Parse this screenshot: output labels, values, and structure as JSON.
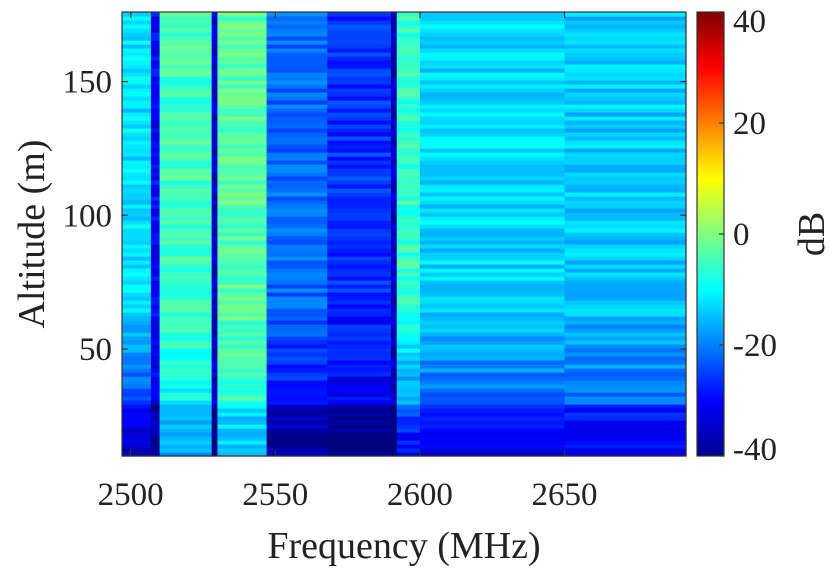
{
  "chart_data": {
    "type": "heatmap",
    "title": "",
    "xlabel": "Frequency (MHz)",
    "ylabel": "Altitude (m)",
    "xlim": [
      2497,
      2692
    ],
    "ylim": [
      10,
      176
    ],
    "xticks": [
      2500,
      2550,
      2600,
      2650
    ],
    "yticks": [
      50,
      100,
      150
    ],
    "colorbar": {
      "label": "dB",
      "limits": [
        -40,
        40
      ],
      "ticks": [
        40,
        20,
        0,
        -20,
        -40
      ],
      "colormap": "jet"
    },
    "grid": false,
    "frequency_bands": [
      {
        "from": 2497,
        "to": 2507,
        "level_high_alt": -12,
        "level_low_alt": -30
      },
      {
        "from": 2507,
        "to": 2510,
        "level_high_alt": -30,
        "level_low_alt": -32
      },
      {
        "from": 2510,
        "to": 2528,
        "level_high_alt": -5,
        "level_low_alt": -12
      },
      {
        "from": 2528,
        "to": 2530,
        "level_high_alt": -34,
        "level_low_alt": -34
      },
      {
        "from": 2530,
        "to": 2547,
        "level_high_alt": -3,
        "level_low_alt": -8
      },
      {
        "from": 2547,
        "to": 2568,
        "level_high_alt": -22,
        "level_low_alt": -32
      },
      {
        "from": 2568,
        "to": 2590,
        "level_high_alt": -26,
        "level_low_alt": -34
      },
      {
        "from": 2590,
        "to": 2592,
        "level_high_alt": -35,
        "level_low_alt": -35
      },
      {
        "from": 2592,
        "to": 2600,
        "level_high_alt": -6,
        "level_low_alt": -24
      },
      {
        "from": 2600,
        "to": 2650,
        "level_high_alt": -13,
        "level_low_alt": -26
      },
      {
        "from": 2650,
        "to": 2692,
        "level_high_alt": -14,
        "level_low_alt": -26
      }
    ]
  }
}
